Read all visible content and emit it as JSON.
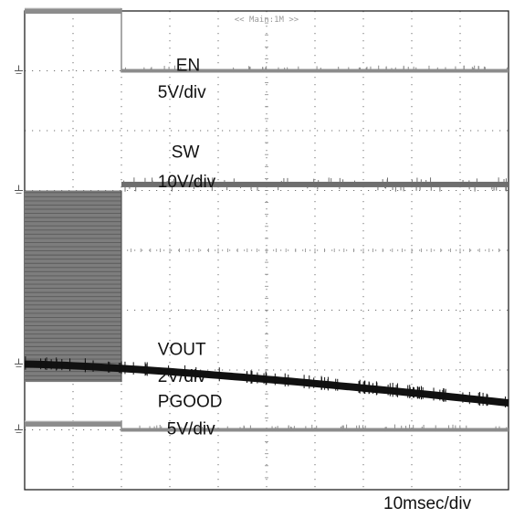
{
  "chart_data": {
    "type": "line",
    "subtype": "oscilloscope-capture",
    "top_readout": "<< Main:1M >>",
    "timebase_label": "10msec/div",
    "grid": {
      "on": true,
      "style": "dotted",
      "divisions_x": 10,
      "divisions_y": 8
    },
    "x_unit": "divisions",
    "x_range": [
      0,
      10
    ],
    "y_range_divisions": [
      0,
      8
    ],
    "channels": [
      {
        "name": "EN",
        "scale_label": "5V/div",
        "color": "#8c8c8c",
        "ground_level_div": 1.0,
        "high_level_div": 1.0,
        "falls_at_div": 2.0,
        "label_lines": [
          "EN",
          "5V/div"
        ]
      },
      {
        "name": "SW",
        "scale_label": "10V/div",
        "color": "#6e6e6e",
        "ground_level_div": 3.0,
        "switching_band_div": [
          3.0,
          6.2
        ],
        "switching_until_div": 2.0,
        "idle_level_div": 0.1,
        "label_lines": [
          "SW",
          "10V/div"
        ]
      },
      {
        "name": "VOUT",
        "scale_label": "2V/div",
        "color": "#111111",
        "ground_level_div": 5.9,
        "start_level_div": 0.0,
        "end_level_div": -0.65,
        "label_lines": [
          "VOUT",
          "2V/div"
        ]
      },
      {
        "name": "PGOOD",
        "scale_label": "5V/div",
        "color": "#8c8c8c",
        "ground_level_div": 7.0,
        "high_level_div": 0.1,
        "falls_at_div": 2.0,
        "label_lines": [
          "PGOOD",
          "5V/div"
        ]
      }
    ]
  }
}
